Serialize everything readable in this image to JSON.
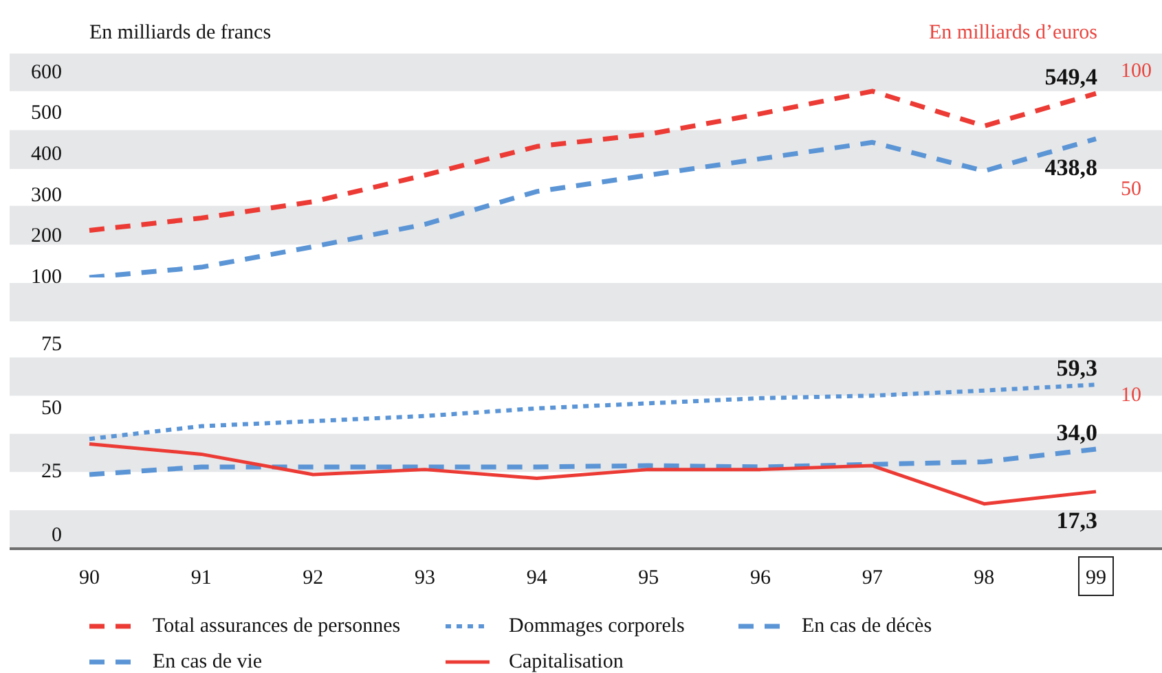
{
  "chart_data": [
    {
      "type": "line",
      "ylabel": "En milliards de francs",
      "y2label": "En milliards d’euros",
      "categories": [
        "90",
        "91",
        "92",
        "93",
        "94",
        "95",
        "96",
        "97",
        "98",
        "99"
      ],
      "series": [
        {
          "name": "Total assurances de personnes",
          "color": "#ec3b35",
          "line_style": "dashed",
          "values": [
            215,
            245,
            285,
            350,
            420,
            450,
            500,
            555,
            470,
            549.4
          ],
          "value_labels": [
            null,
            null,
            null,
            null,
            null,
            null,
            null,
            null,
            null,
            "549,4"
          ]
        },
        {
          "name": "En cas de vie",
          "color": "#5b95d6",
          "line_style": "dashed",
          "values": [
            100,
            125,
            175,
            230,
            310,
            350,
            390,
            430,
            360,
            438.8
          ],
          "value_labels": [
            null,
            null,
            null,
            null,
            null,
            null,
            null,
            null,
            null,
            "438,8"
          ]
        }
      ],
      "ylim": [
        100,
        600
      ],
      "yticks": [
        100,
        200,
        300,
        400,
        500,
        600
      ],
      "tick_labels": "y",
      "legend": "bottom",
      "annotations": [
        "100",
        "50"
      ],
      "bands": [
        {
          "axis": "y",
          "from": 555,
          "to": 600,
          "color": "#e6e7e9"
        },
        {
          "axis": "y",
          "from": 365,
          "to": 460,
          "color": "#e6e7e9"
        },
        {
          "axis": "y",
          "from": 180,
          "to": 275,
          "color": "#e6e7e9"
        }
      ]
    },
    {
      "type": "line",
      "categories": [
        "90",
        "91",
        "92",
        "93",
        "94",
        "95",
        "96",
        "97",
        "98",
        "99"
      ],
      "series": [
        {
          "name": "Dommages corporels",
          "color": "#5b95d6",
          "line_style": "dotted",
          "values": [
            38,
            43,
            45,
            47,
            50,
            52,
            54,
            55,
            57,
            59.3
          ],
          "value_labels": [
            null,
            null,
            null,
            null,
            null,
            null,
            null,
            null,
            null,
            "59,3"
          ]
        },
        {
          "name": "Capitalisation",
          "color": "#ec3b35",
          "line_style": "solid",
          "values": [
            36,
            32,
            24,
            26,
            22.5,
            26,
            26,
            27.5,
            12.5,
            17.3
          ],
          "value_labels": [
            null,
            null,
            null,
            null,
            null,
            null,
            null,
            null,
            null,
            "17,3"
          ]
        },
        {
          "name": "En cas de décès",
          "color": "#5b95d6",
          "line_style": "dashed",
          "values": [
            24,
            27,
            27,
            27,
            27,
            27.5,
            27,
            28,
            29,
            34.0
          ],
          "value_labels": [
            null,
            null,
            null,
            null,
            null,
            null,
            null,
            null,
            null,
            "34,0"
          ]
        }
      ],
      "ylim": [
        0,
        75
      ],
      "yticks": [
        0,
        25,
        50,
        75
      ],
      "legend": "bottom",
      "annotations": [
        "10"
      ],
      "bands": [
        {
          "axis": "y",
          "from": 55,
          "to": 70,
          "color": "#e6e7e9"
        },
        {
          "axis": "y",
          "from": 25,
          "to": 40,
          "color": "#e6e7e9"
        },
        {
          "axis": "y",
          "from": 0,
          "to": 10,
          "color": "#e6e7e9"
        }
      ]
    }
  ]
}
